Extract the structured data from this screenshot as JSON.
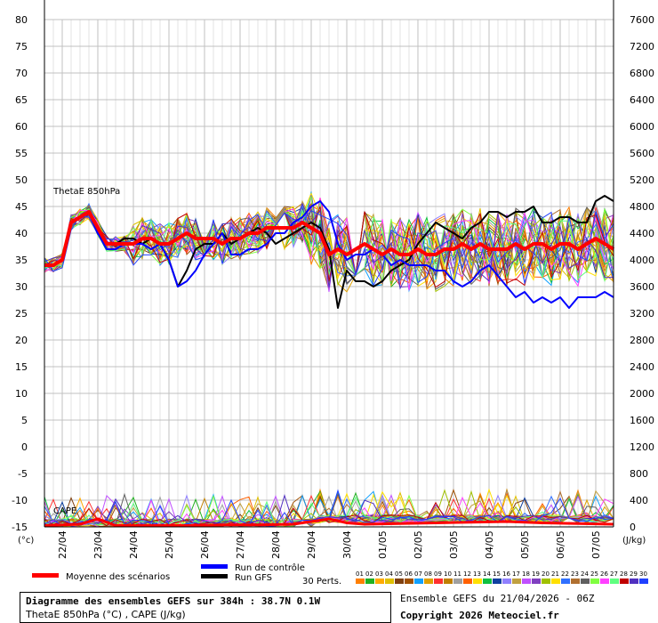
{
  "chart_data": {
    "type": "line",
    "title": "Diagramme des ensembles GEFS sur 384h : 38.7N 0.1W",
    "subtitle": "ThetaE 850hPa (°C) , CAPE (J/kg)",
    "left_axis": {
      "label": "(°c)",
      "ylim": [
        -15,
        80
      ],
      "ticks": [
        "80",
        "75",
        "70",
        "65",
        "60",
        "55",
        "50",
        "45",
        "40",
        "35",
        "30",
        "25",
        "20",
        "15",
        "10",
        "5",
        "0",
        "-5",
        "-10",
        "-15"
      ]
    },
    "right_axis": {
      "label": "(J/kg)",
      "ylim": [
        0,
        7600
      ],
      "ticks": [
        "7600",
        "7200",
        "6800",
        "6400",
        "6000",
        "5600",
        "5200",
        "4800",
        "4400",
        "4000",
        "3600",
        "3200",
        "2800",
        "2400",
        "2000",
        "1600",
        "1200",
        "800",
        "400",
        "0"
      ]
    },
    "x_tick_labels": [
      "22/04",
      "23/04",
      "24/04",
      "25/04",
      "26/04",
      "27/04",
      "28/04",
      "29/04",
      "30/04",
      "01/05",
      "02/05",
      "03/05",
      "04/05",
      "05/05",
      "06/05",
      "07/05"
    ],
    "x_start_hours_before_first_tick": 12,
    "x_range_hours": 384,
    "grid": true,
    "annotations": [
      "ThetaE 850hPa",
      "CAPE"
    ],
    "series": [
      {
        "name": "Moyenne des scénarios",
        "color": "#ff0000",
        "x": [
          0,
          6,
          12,
          18,
          24,
          30,
          36,
          42,
          48,
          54,
          60,
          66,
          72,
          78,
          84,
          90,
          96,
          102,
          108,
          114,
          120,
          126,
          132,
          138,
          144,
          150,
          156,
          162,
          168,
          174,
          180,
          186,
          192,
          198,
          204,
          210,
          216,
          222,
          228,
          234,
          240,
          246,
          252,
          258,
          264,
          270,
          276,
          282,
          288,
          294,
          300,
          306,
          312,
          318,
          324,
          330,
          336,
          342,
          348,
          354,
          360,
          366,
          372,
          378,
          384
        ],
        "y": [
          34,
          34,
          35,
          42,
          43,
          44,
          41,
          38,
          38,
          38,
          38,
          39,
          39,
          38,
          38,
          39,
          40,
          39,
          39,
          39,
          38,
          39,
          39,
          40,
          40,
          41,
          41,
          41,
          41,
          42,
          41,
          40,
          36,
          37,
          36,
          37,
          38,
          37,
          36,
          37,
          36,
          36,
          37,
          36,
          36,
          37,
          37,
          38,
          37,
          38,
          37,
          37,
          37,
          38,
          37,
          38,
          38,
          37,
          38,
          38,
          37,
          38,
          39,
          38,
          37
        ]
      },
      {
        "name": "Run de contrôle",
        "color": "#0000ff",
        "x": [
          0,
          6,
          12,
          18,
          24,
          30,
          36,
          42,
          48,
          54,
          60,
          66,
          72,
          78,
          84,
          90,
          96,
          102,
          108,
          114,
          120,
          126,
          132,
          138,
          144,
          150,
          156,
          162,
          168,
          174,
          180,
          186,
          192,
          198,
          204,
          210,
          216,
          222,
          228,
          234,
          240,
          246,
          252,
          258,
          264,
          270,
          276,
          282,
          288,
          294,
          300,
          306,
          312,
          318,
          324,
          330,
          336,
          342,
          348,
          354,
          360,
          366,
          372,
          378,
          384
        ],
        "y": [
          34,
          34,
          35,
          42,
          43,
          44,
          40,
          37,
          37,
          38,
          38,
          38,
          37,
          38,
          35,
          30,
          31,
          33,
          36,
          38,
          40,
          36,
          36,
          37,
          37,
          38,
          40,
          40,
          42,
          43,
          45,
          46,
          44,
          38,
          35,
          36,
          36,
          37,
          36,
          34,
          35,
          34,
          34,
          34,
          33,
          33,
          31,
          30,
          31,
          33,
          34,
          32,
          30,
          28,
          29,
          27,
          28,
          27,
          28,
          26,
          28,
          28,
          28,
          29,
          28
        ]
      },
      {
        "name": "Run GFS",
        "color": "#000000",
        "x": [
          0,
          6,
          12,
          18,
          24,
          30,
          36,
          42,
          48,
          54,
          60,
          66,
          72,
          78,
          84,
          90,
          96,
          102,
          108,
          114,
          120,
          126,
          132,
          138,
          144,
          150,
          156,
          162,
          168,
          174,
          180,
          186,
          192,
          198,
          204,
          210,
          216,
          222,
          228,
          234,
          240,
          246,
          252,
          258,
          264,
          270,
          276,
          282,
          288,
          294,
          300,
          306,
          312,
          318,
          324,
          330,
          336,
          342,
          348,
          354,
          360,
          366,
          372,
          378,
          384
        ],
        "y": [
          34,
          34,
          35,
          42,
          43,
          44,
          40,
          38,
          38,
          39,
          39,
          38,
          39,
          38,
          35,
          30,
          33,
          37,
          38,
          38,
          40,
          38,
          39,
          40,
          41,
          40,
          38,
          39,
          40,
          41,
          42,
          41,
          37,
          26,
          33,
          31,
          31,
          30,
          31,
          33,
          34,
          35,
          38,
          40,
          42,
          41,
          40,
          39,
          41,
          42,
          44,
          44,
          43,
          44,
          44,
          45,
          42,
          42,
          43,
          43,
          42,
          42,
          46,
          47,
          46
        ]
      }
    ],
    "cape_mean": {
      "x": [
        0,
        24,
        36,
        48,
        72,
        96,
        120,
        144,
        168,
        180,
        192,
        204,
        216,
        240,
        264,
        288,
        312,
        336,
        360,
        384
      ],
      "y": [
        20,
        40,
        120,
        20,
        20,
        20,
        30,
        30,
        40,
        80,
        120,
        60,
        40,
        50,
        60,
        70,
        80,
        60,
        50,
        40
      ]
    }
  },
  "legend": {
    "mean_label": "Moyenne des scénarios",
    "control_label": "Run de contrôle",
    "gfs_label": "Run GFS",
    "perts_label": "30 Perts.",
    "pert_numbers": [
      "01",
      "02",
      "03",
      "04",
      "05",
      "06",
      "07",
      "08",
      "09",
      "10",
      "11",
      "12",
      "13",
      "14",
      "15",
      "16",
      "17",
      "18",
      "19",
      "20",
      "21",
      "22",
      "23",
      "24",
      "25",
      "26",
      "27",
      "28",
      "29",
      "30"
    ],
    "pert_colors": [
      "#ff7f00",
      "#20b020",
      "#ffaa00",
      "#e0c000",
      "#7f4010",
      "#a05000",
      "#10a0ff",
      "#e0a000",
      "#ff3030",
      "#c08000",
      "#a0a0a0",
      "#ff6000",
      "#ffe000",
      "#10c040",
      "#1040a0",
      "#9080ff",
      "#c0a040",
      "#c050ff",
      "#8040c0",
      "#a0c000",
      "#ffe000",
      "#3070ff",
      "#b07030",
      "#606060",
      "#80ff40",
      "#ff40ff",
      "#60ff80",
      "#c00000",
      "#5030c0",
      "#2040ff"
    ],
    "mean_color": "#ff0000",
    "control_color": "#0000ff",
    "gfs_color": "#000000"
  },
  "footer": {
    "title": "Diagramme des ensembles GEFS sur 384h : 38.7N 0.1W",
    "subtitle": "ThetaE 850hPa (°C) , CAPE (J/kg)",
    "run_info": "Ensemble GEFS du 21/04/2026 - 06Z",
    "copyright": "Copyright 2026 Meteociel.fr"
  },
  "colors": {
    "grid": "#c0c0c0",
    "plot_border": "#000000",
    "background": "#ffffff"
  }
}
